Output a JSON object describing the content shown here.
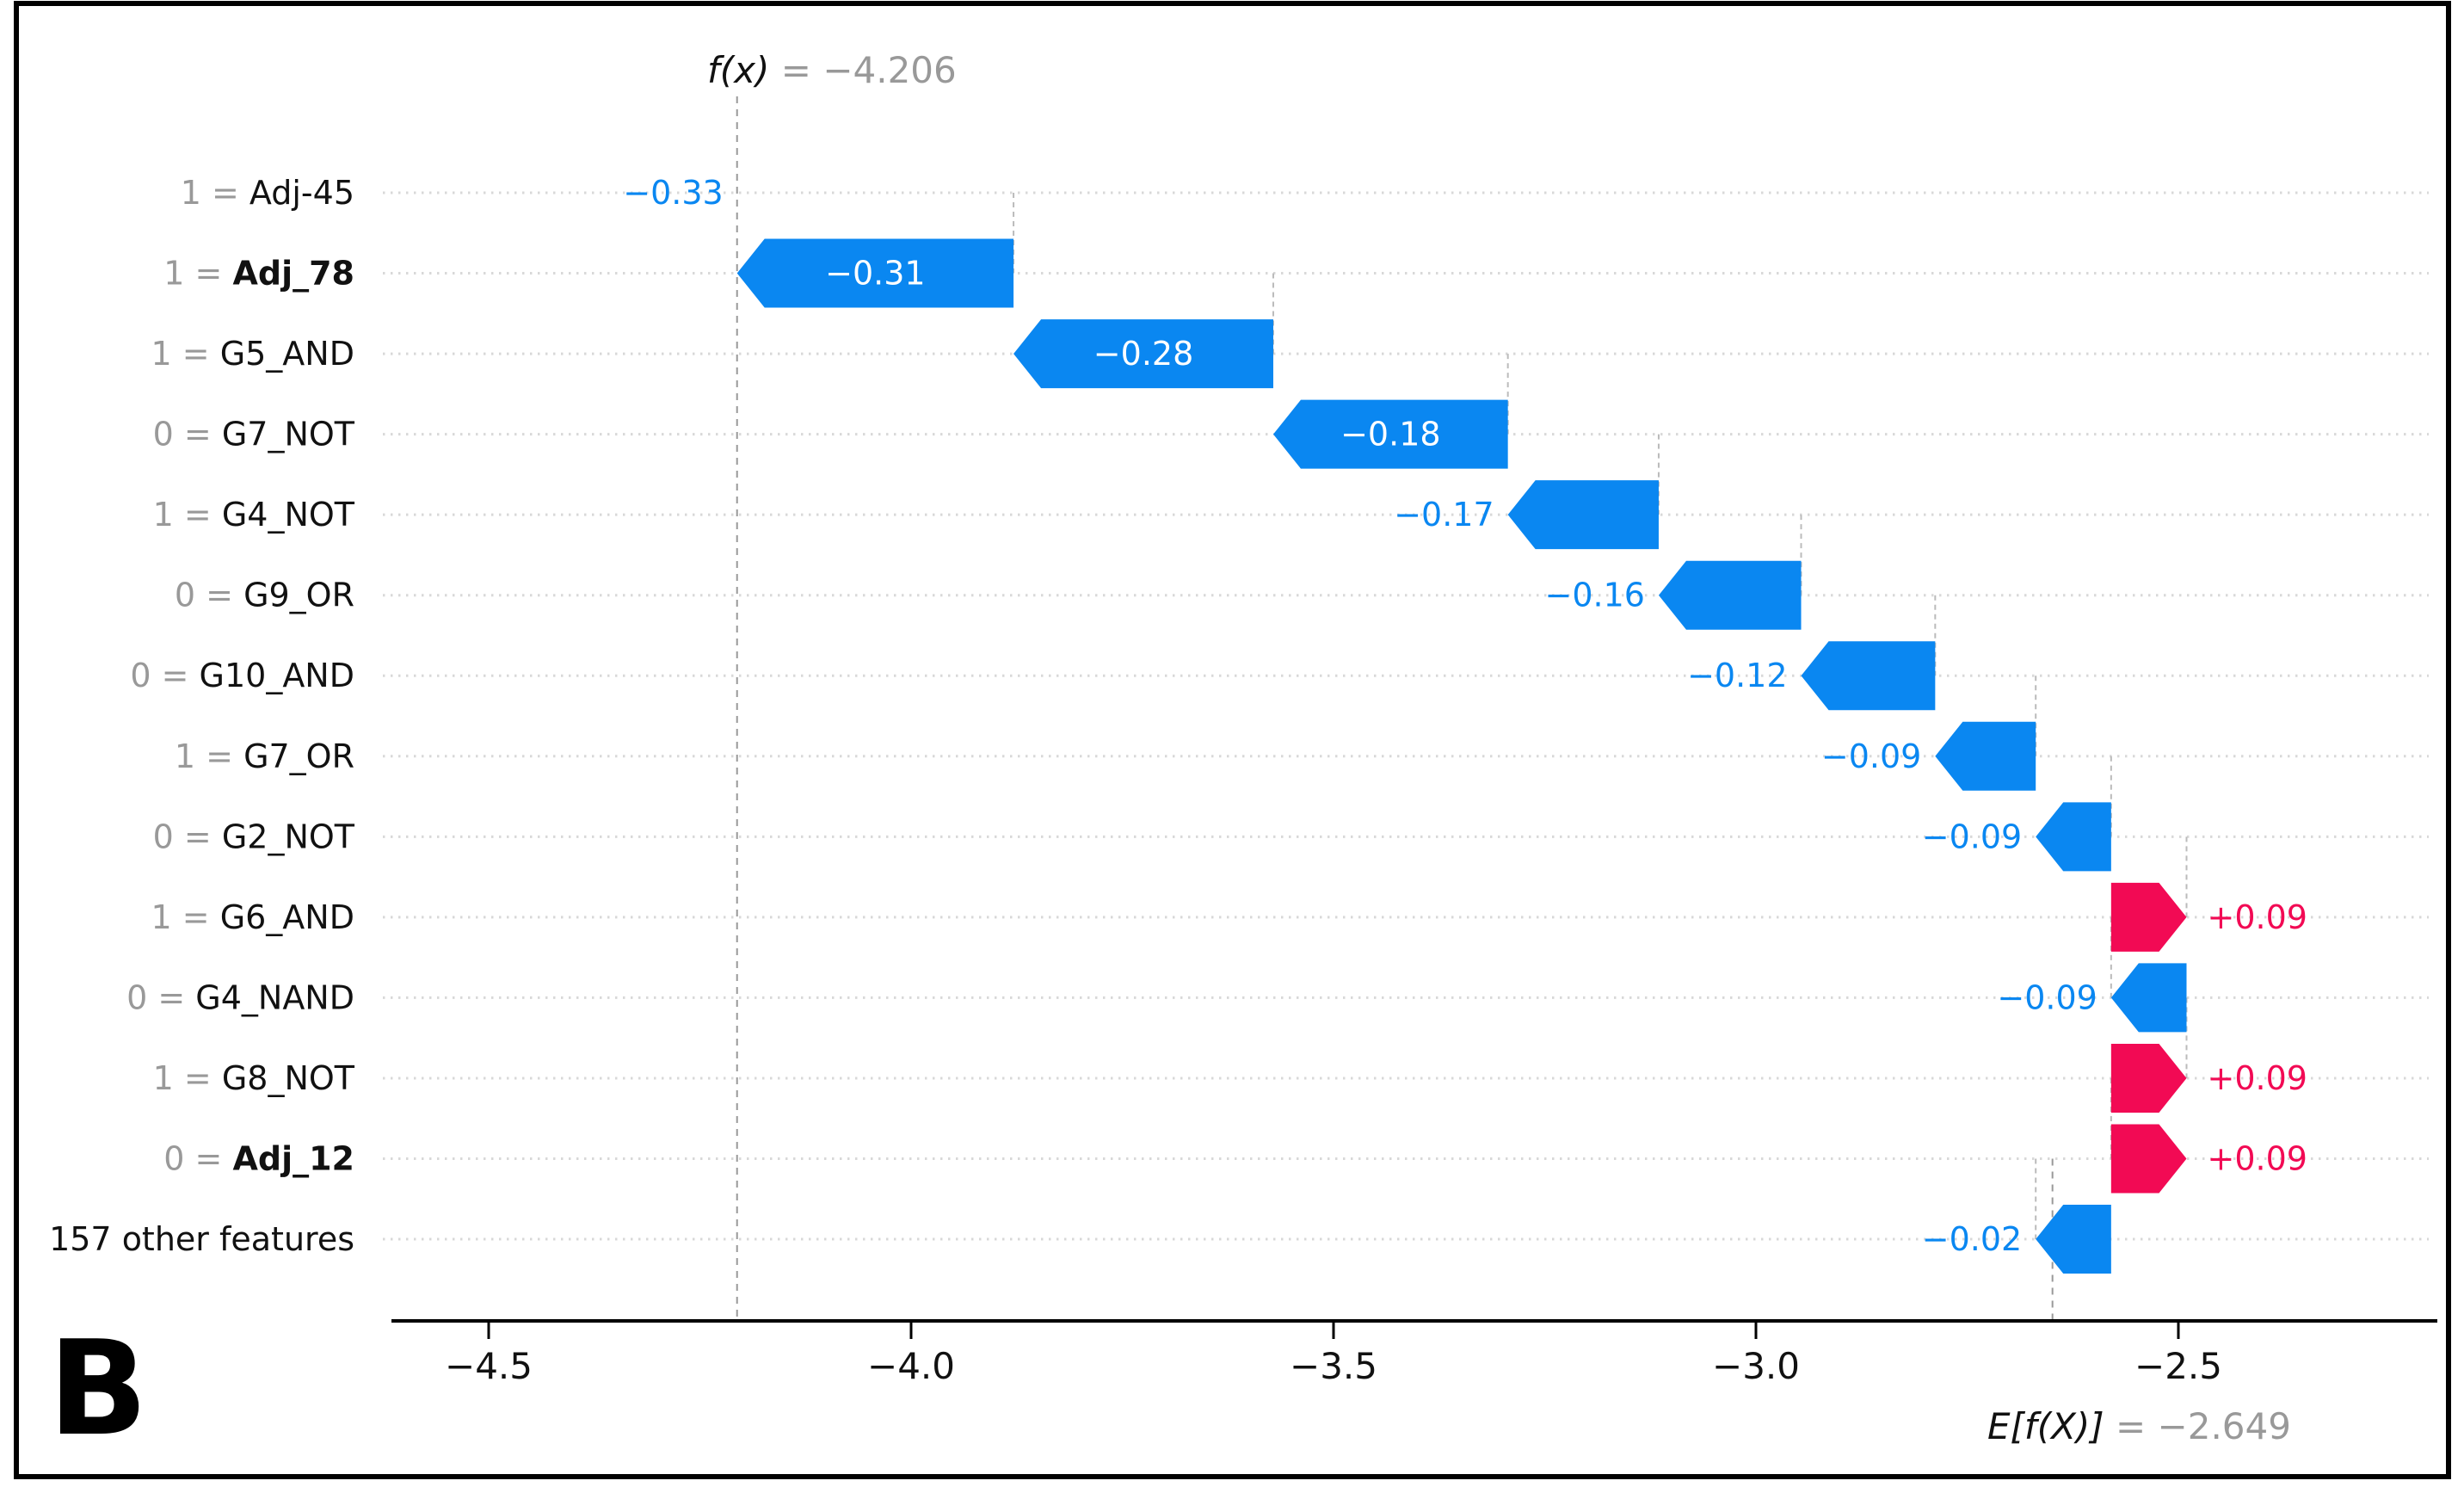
{
  "panel_label": "B",
  "fx_label": {
    "name": "f(x)",
    "rest": " = −4.206"
  },
  "efx_label": {
    "name": "E[f(X)]",
    "rest": " = −2.649"
  },
  "chart_data": {
    "type": "bar",
    "subtype": "shap-waterfall",
    "f_x": -4.206,
    "e_f_x": -2.649,
    "fx_text": "f(x) = −4.206",
    "efx_text": "E[f(X)] = −2.649",
    "x_ticks": [
      -4.5,
      -4.0,
      -3.5,
      -3.0,
      -2.5
    ],
    "x_tick_labels": [
      "−4.5",
      "−4.0",
      "−3.5",
      "−3.0",
      "−2.5"
    ],
    "xlim": [
      -4.615,
      -2.19
    ],
    "grid": "dotted-row-lines",
    "rows": [
      {
        "feature_value": "1",
        "feature": "Adj-45",
        "bold": false,
        "shap": -0.33,
        "label": "−0.33"
      },
      {
        "feature_value": "1",
        "feature": "Adj_78",
        "bold": true,
        "shap": -0.31,
        "label": "−0.31"
      },
      {
        "feature_value": "1",
        "feature": "G5_AND",
        "bold": false,
        "shap": -0.28,
        "label": "−0.28"
      },
      {
        "feature_value": "0",
        "feature": "G7_NOT",
        "bold": false,
        "shap": -0.18,
        "label": "−0.18"
      },
      {
        "feature_value": "1",
        "feature": "G4_NOT",
        "bold": false,
        "shap": -0.17,
        "label": "−0.17"
      },
      {
        "feature_value": "0",
        "feature": "G9_OR",
        "bold": false,
        "shap": -0.16,
        "label": "−0.16"
      },
      {
        "feature_value": "0",
        "feature": "G10_AND",
        "bold": false,
        "shap": -0.12,
        "label": "−0.12"
      },
      {
        "feature_value": "1",
        "feature": "G7_OR",
        "bold": false,
        "shap": -0.09,
        "label": "−0.09"
      },
      {
        "feature_value": "0",
        "feature": "G2_NOT",
        "bold": false,
        "shap": -0.09,
        "label": "−0.09"
      },
      {
        "feature_value": "1",
        "feature": "G6_AND",
        "bold": false,
        "shap": 0.09,
        "label": "+0.09"
      },
      {
        "feature_value": "0",
        "feature": "G4_NAND",
        "bold": false,
        "shap": -0.09,
        "label": "−0.09"
      },
      {
        "feature_value": "1",
        "feature": "G8_NOT",
        "bold": false,
        "shap": 0.09,
        "label": "+0.09"
      },
      {
        "feature_value": "0",
        "feature": "Adj_12",
        "bold": true,
        "shap": 0.09,
        "label": "+0.09"
      },
      {
        "feature_value": "",
        "feature": "157 other features",
        "bold": false,
        "shap": -0.02,
        "label": "−0.02"
      }
    ],
    "colors": {
      "negative_bar": "#0a87f1",
      "positive_bar": "#f20a54",
      "gray_text": "#999999",
      "row_dots": "#d8d8d8",
      "connector_dash": "#bbbbbb",
      "anchor_dash": "#999999",
      "axis": "#000000",
      "feature_text": "#111111",
      "inside_label": "#ffffff"
    }
  }
}
